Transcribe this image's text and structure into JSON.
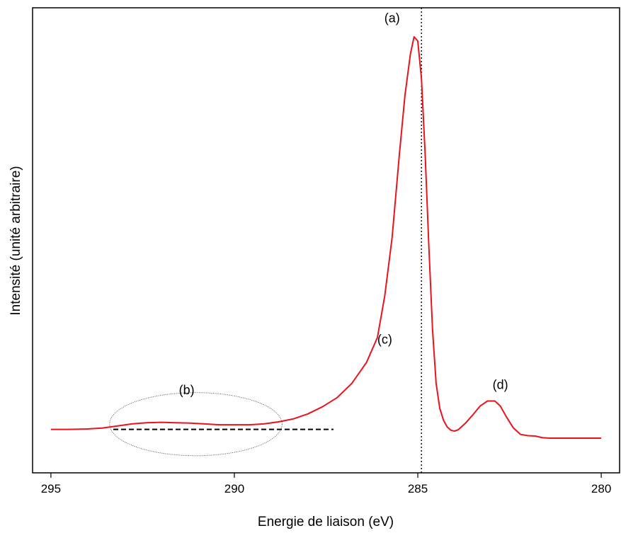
{
  "chart_data": {
    "type": "line",
    "xlabel": "Energie de liaison (eV)",
    "ylabel": "Intensité (unité arbitraire)",
    "xlim": [
      295.5,
      279.5
    ],
    "ylim": [
      0,
      100
    ],
    "x_reversed": true,
    "x_ticks": [
      295,
      290,
      285,
      280
    ],
    "y_ticks_shown": false,
    "grid": false,
    "series": [
      {
        "color": "#e8141c",
        "x": [
          295.0,
          294.5,
          294.0,
          293.6,
          293.2,
          292.8,
          292.4,
          292.0,
          291.6,
          291.2,
          290.8,
          290.4,
          290.0,
          289.6,
          289.2,
          288.8,
          288.4,
          288.0,
          287.6,
          287.2,
          286.8,
          286.4,
          286.1,
          285.9,
          285.7,
          285.5,
          285.35,
          285.2,
          285.1,
          285.0,
          284.9,
          284.8,
          284.7,
          284.6,
          284.5,
          284.4,
          284.3,
          284.2,
          284.1,
          284.0,
          283.9,
          283.7,
          283.5,
          283.3,
          283.1,
          282.9,
          282.75,
          282.6,
          282.4,
          282.2,
          282.0,
          281.8,
          281.6,
          281.4,
          281.2,
          281.0,
          280.5,
          280.0
        ],
        "y": [
          6.0,
          6.0,
          6.1,
          6.3,
          6.8,
          7.3,
          7.6,
          7.7,
          7.6,
          7.5,
          7.3,
          7.1,
          7.1,
          7.1,
          7.3,
          7.8,
          8.5,
          9.7,
          11.4,
          13.6,
          17.0,
          22.0,
          28.0,
          38.0,
          52.0,
          72.0,
          86.0,
          96.0,
          100.0,
          99.0,
          90.0,
          72.0,
          50.0,
          30.0,
          17.0,
          11.0,
          8.2,
          6.6,
          5.8,
          5.6,
          5.9,
          7.5,
          9.5,
          11.6,
          12.8,
          12.8,
          11.6,
          9.2,
          6.4,
          4.8,
          4.5,
          4.4,
          4.0,
          3.9,
          3.9,
          3.9,
          3.9,
          3.9
        ]
      },
      {
        "color": "#000000",
        "x": [
          293.3,
          291.3,
          289.3,
          287.3
        ],
        "y": [
          6.0,
          6.0,
          6.0,
          6.0
        ]
      }
    ],
    "vline_x": 284.9,
    "annotations": [
      {
        "text": "(a)",
        "x": 285.7,
        "y": 103.5
      },
      {
        "text": "(b)",
        "x": 291.3,
        "y": 14.4
      },
      {
        "text": "(c)",
        "x": 285.9,
        "y": 26.5
      },
      {
        "text": "(d)",
        "x": 282.75,
        "y": 15.7
      }
    ],
    "region_b": {
      "x_min": 293.4,
      "x_max": 288.7,
      "y_min": -0.3,
      "y_max": 14.8
    }
  }
}
